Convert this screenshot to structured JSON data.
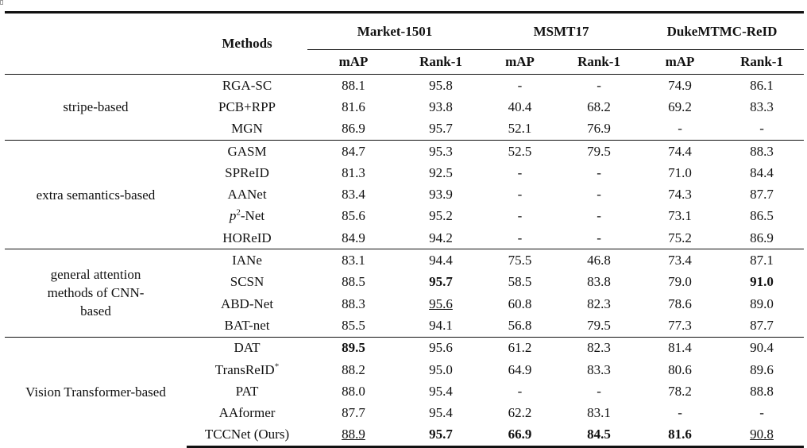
{
  "table": {
    "methods_header": "Methods",
    "datasets": [
      "Market-1501",
      "MSMT17",
      "DukeMTMC-ReID"
    ],
    "metrics": [
      "mAP",
      "Rank-1",
      "mAP",
      "Rank-1",
      "mAP",
      "Rank-1"
    ],
    "groups": [
      {
        "label": "stripe-based",
        "rows": [
          {
            "method": "RGA-SC",
            "values": [
              "88.1",
              "95.8",
              "-",
              "-",
              "74.9",
              "86.1"
            ],
            "bold": [],
            "underline": []
          },
          {
            "method": "PCB+RPP",
            "values": [
              "81.6",
              "93.8",
              "40.4",
              "68.2",
              "69.2",
              "83.3"
            ],
            "bold": [],
            "underline": []
          },
          {
            "method": "MGN",
            "values": [
              "86.9",
              "95.7",
              "52.1",
              "76.9",
              "-",
              "-"
            ],
            "bold": [],
            "underline": []
          }
        ]
      },
      {
        "label": "extra semantics-based",
        "rows": [
          {
            "method": "GASM",
            "values": [
              "84.7",
              "95.3",
              "52.5",
              "79.5",
              "74.4",
              "88.3"
            ],
            "bold": [],
            "underline": []
          },
          {
            "method": "SPReID",
            "values": [
              "81.3",
              "92.5",
              "-",
              "-",
              "71.0",
              "84.4"
            ],
            "bold": [],
            "underline": []
          },
          {
            "method": "AANet",
            "values": [
              "83.4",
              "93.9",
              "-",
              "-",
              "74.3",
              "87.7"
            ],
            "bold": [],
            "underline": []
          },
          {
            "method": "p2-Net",
            "method_base": "p",
            "method_sup": "2",
            "method_rest": "-Net",
            "values": [
              "85.6",
              "95.2",
              "-",
              "-",
              "73.1",
              "86.5"
            ],
            "bold": [],
            "underline": []
          },
          {
            "method": "HOReID",
            "values": [
              "84.9",
              "94.2",
              "-",
              "-",
              "75.2",
              "86.9"
            ],
            "bold": [],
            "underline": []
          }
        ]
      },
      {
        "label": "general attention methods of CNN-based",
        "rows": [
          {
            "method": "IANe",
            "values": [
              "83.1",
              "94.4",
              "75.5",
              "46.8",
              "73.4",
              "87.1"
            ],
            "bold": [],
            "underline": []
          },
          {
            "method": "SCSN",
            "values": [
              "88.5",
              "95.7",
              "58.5",
              "83.8",
              "79.0",
              "91.0"
            ],
            "bold": [
              1,
              5
            ],
            "underline": []
          },
          {
            "method": "ABD-Net",
            "values": [
              "88.3",
              "95.6",
              "60.8",
              "82.3",
              "78.6",
              "89.0"
            ],
            "bold": [],
            "underline": [
              1
            ]
          },
          {
            "method": "BAT-net",
            "values": [
              "85.5",
              "94.1",
              "56.8",
              "79.5",
              "77.3",
              "87.7"
            ],
            "bold": [],
            "underline": []
          }
        ]
      },
      {
        "label": "Vision Transformer-based",
        "rows": [
          {
            "method": "DAT",
            "values": [
              "89.5",
              "95.6",
              "61.2",
              "82.3",
              "81.4",
              "90.4"
            ],
            "bold": [
              0
            ],
            "underline": []
          },
          {
            "method": "TransReID*",
            "method_base": "TransReID",
            "method_sup": "*",
            "method_rest": "",
            "values": [
              "88.2",
              "95.0",
              "64.9",
              "83.3",
              "80.6",
              "89.6"
            ],
            "bold": [],
            "underline": []
          },
          {
            "method": "PAT",
            "values": [
              "88.0",
              "95.4",
              "-",
              "-",
              "78.2",
              "88.8"
            ],
            "bold": [],
            "underline": []
          },
          {
            "method": "AAformer",
            "values": [
              "87.7",
              "95.4",
              "62.2",
              "83.1",
              "-",
              "-"
            ],
            "bold": [],
            "underline": []
          },
          {
            "method": "TCCNet (Ours)",
            "values": [
              "88.9",
              "95.7",
              "66.9",
              "84.5",
              "81.6",
              "90.8"
            ],
            "bold": [
              1,
              2,
              3,
              4
            ],
            "underline": [
              0,
              5
            ]
          }
        ]
      }
    ]
  }
}
